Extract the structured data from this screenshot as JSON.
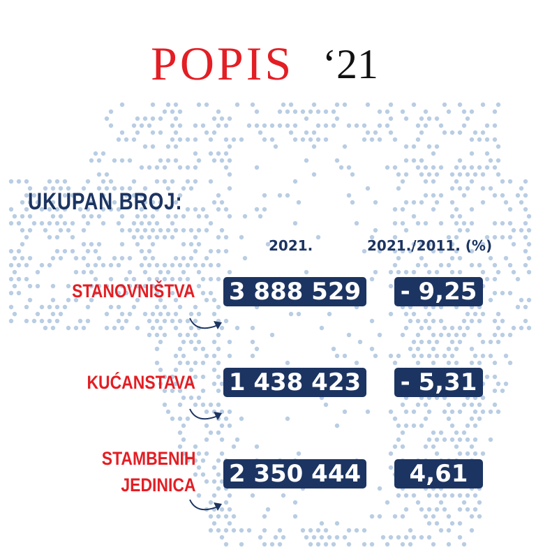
{
  "logo": {
    "text": "POPIS",
    "year": "‘21"
  },
  "heading": "UKUPAN BROJ:",
  "columns": [
    "2021.",
    "2021./2011. (%)"
  ],
  "rows": [
    {
      "label": "STANOVNIŠTVA",
      "value_2021": "3 888 529",
      "change": "- 9,25"
    },
    {
      "label": "KUĆANSTAVA",
      "value_2021": "1 438 423",
      "change": "- 5,31"
    },
    {
      "label": "STAMBENIH JEDINICA",
      "label_line1": "STAMBENIH",
      "label_line2": "JEDINICA",
      "value_2021": "2 350 444",
      "change": "4,61"
    }
  ],
  "colors": {
    "navy": "#1c3461",
    "red": "#e31e24",
    "dots": "#b9cde3"
  }
}
